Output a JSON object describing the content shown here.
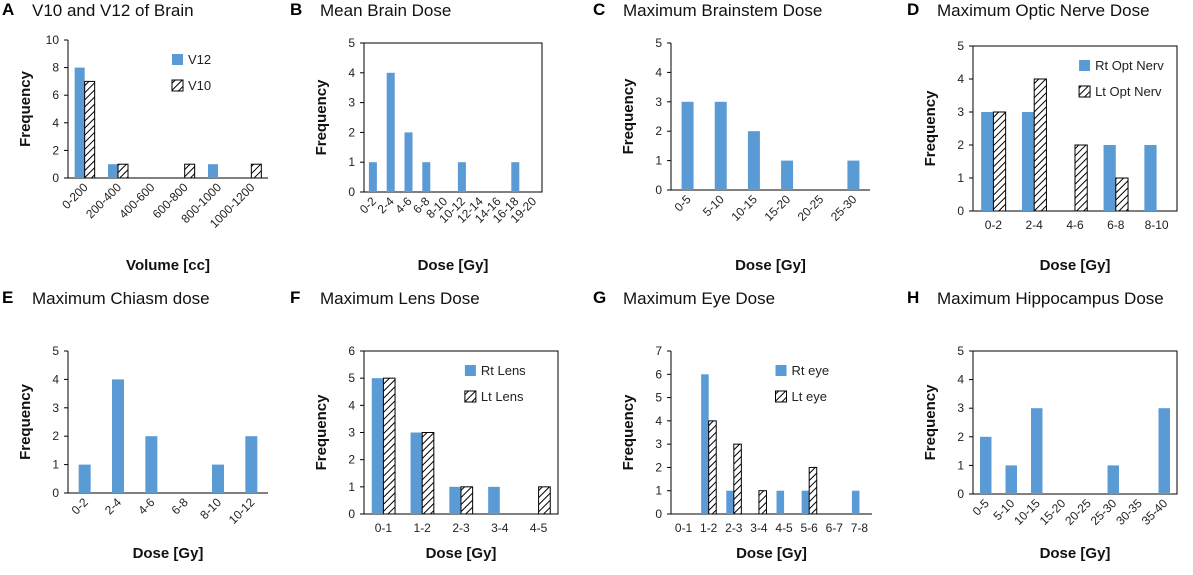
{
  "colors": {
    "primary_bar": "#5B9BD5",
    "hatch_stroke": "#000000",
    "axis": "#000000"
  },
  "chart_data": [
    {
      "letter": "A",
      "title": "V10 and V12 of Brain",
      "type": "bar",
      "categories": [
        "0-200",
        "200-400",
        "400-600",
        "600-800",
        "800-1000",
        "1000-1200"
      ],
      "series": [
        {
          "name": "V12",
          "style": "solid",
          "values": [
            8,
            1,
            0,
            0,
            1,
            0
          ]
        },
        {
          "name": "V10",
          "style": "hatched",
          "values": [
            7,
            1,
            0,
            1,
            0,
            1
          ]
        }
      ],
      "xlabel": "Volume [cc]",
      "ylabel": "Frequency",
      "ylim": [
        0,
        10
      ],
      "yticks": [
        0,
        2,
        4,
        6,
        8,
        10
      ],
      "rotate_xticks": true,
      "box": false,
      "legend": "top-right"
    },
    {
      "letter": "B",
      "title": "Mean Brain Dose",
      "type": "bar",
      "categories": [
        "0-2",
        "2-4",
        "4-6",
        "6-8",
        "8-10",
        "10-12",
        "12-14",
        "14-16",
        "16-18",
        "19-20"
      ],
      "series": [
        {
          "name": "",
          "style": "solid",
          "values": [
            1,
            4,
            2,
            1,
            0,
            1,
            0,
            0,
            1,
            0
          ]
        }
      ],
      "xlabel": "Dose [Gy]",
      "ylabel": "Frequency",
      "ylim": [
        0,
        5
      ],
      "yticks": [
        0,
        1,
        2,
        3,
        4,
        5
      ],
      "rotate_xticks": true,
      "box": true,
      "legend": "none"
    },
    {
      "letter": "C",
      "title": "Maximum Brainstem Dose",
      "type": "bar",
      "categories": [
        "0-5",
        "5-10",
        "10-15",
        "15-20",
        "20-25",
        "25-30"
      ],
      "series": [
        {
          "name": "",
          "style": "solid",
          "values": [
            3,
            3,
            2,
            1,
            0,
            1
          ]
        }
      ],
      "xlabel": "Dose [Gy]",
      "ylabel": "Frequency",
      "ylim": [
        0,
        5
      ],
      "yticks": [
        0,
        1,
        2,
        3,
        4,
        5
      ],
      "rotate_xticks": true,
      "box": false,
      "legend": "none"
    },
    {
      "letter": "D",
      "title": "Maximum Optic Nerve Dose",
      "type": "bar",
      "categories": [
        "0-2",
        "2-4",
        "4-6",
        "6-8",
        "8-10"
      ],
      "series": [
        {
          "name": "Rt Opt Nerv",
          "style": "solid",
          "values": [
            3,
            3,
            0,
            2,
            2
          ]
        },
        {
          "name": "Lt Opt Nerv",
          "style": "hatched",
          "values": [
            3,
            4,
            2,
            1,
            0
          ]
        }
      ],
      "xlabel": "Dose [Gy]",
      "ylabel": "Frequency",
      "ylim": [
        0,
        5
      ],
      "yticks": [
        0,
        1,
        2,
        3,
        4,
        5
      ],
      "rotate_xticks": false,
      "box": true,
      "legend": "top-right"
    },
    {
      "letter": "E",
      "title": "Maximum Chiasm dose",
      "type": "bar",
      "categories": [
        "0-2",
        "2-4",
        "4-6",
        "6-8",
        "8-10",
        "10-12"
      ],
      "series": [
        {
          "name": "",
          "style": "solid",
          "values": [
            1,
            4,
            2,
            0,
            1,
            2
          ]
        }
      ],
      "xlabel": "Dose [Gy]",
      "ylabel": "Frequency",
      "ylim": [
        0,
        5
      ],
      "yticks": [
        0,
        1,
        2,
        3,
        4,
        5
      ],
      "rotate_xticks": true,
      "box": false,
      "legend": "none"
    },
    {
      "letter": "F",
      "title": "Maximum Lens Dose",
      "type": "bar",
      "categories": [
        "0-1",
        "1-2",
        "2-3",
        "3-4",
        "4-5"
      ],
      "series": [
        {
          "name": "Rt Lens",
          "style": "solid",
          "values": [
            5,
            3,
            1,
            1,
            0
          ]
        },
        {
          "name": "Lt Lens",
          "style": "hatched",
          "values": [
            5,
            3,
            1,
            0,
            1
          ]
        }
      ],
      "xlabel": "Dose [Gy]",
      "ylabel": "Frequency",
      "ylim": [
        0,
        6
      ],
      "yticks": [
        0,
        1,
        2,
        3,
        4,
        5,
        6
      ],
      "rotate_xticks": false,
      "box": true,
      "legend": "top-right"
    },
    {
      "letter": "G",
      "title": "Maximum Eye Dose",
      "type": "bar",
      "categories": [
        "0-1",
        "1-2",
        "2-3",
        "3-4",
        "4-5",
        "5-6",
        "6-7",
        "7-8"
      ],
      "series": [
        {
          "name": "Rt eye",
          "style": "solid",
          "values": [
            0,
            6,
            1,
            0,
            1,
            1,
            0,
            1
          ]
        },
        {
          "name": "Lt eye",
          "style": "hatched",
          "values": [
            0,
            4,
            3,
            1,
            0,
            2,
            0,
            0
          ]
        }
      ],
      "xlabel": "Dose [Gy]",
      "ylabel": "Frequency",
      "ylim": [
        0,
        7
      ],
      "yticks": [
        0,
        1,
        2,
        3,
        4,
        5,
        6,
        7
      ],
      "rotate_xticks": false,
      "box": false,
      "legend": "top-right"
    },
    {
      "letter": "H",
      "title": "Maximum Hippocampus Dose",
      "type": "bar",
      "categories": [
        "0-5",
        "5-10",
        "10-15",
        "15-20",
        "20-25",
        "25-30",
        "30-35",
        "35-40"
      ],
      "series": [
        {
          "name": "",
          "style": "solid",
          "values": [
            2,
            1,
            3,
            0,
            0,
            1,
            0,
            3
          ]
        }
      ],
      "xlabel": "Dose [Gy]",
      "ylabel": "Frequency",
      "ylim": [
        0,
        5
      ],
      "yticks": [
        0,
        1,
        2,
        3,
        4,
        5
      ],
      "rotate_xticks": true,
      "box": true,
      "legend": "none"
    }
  ]
}
